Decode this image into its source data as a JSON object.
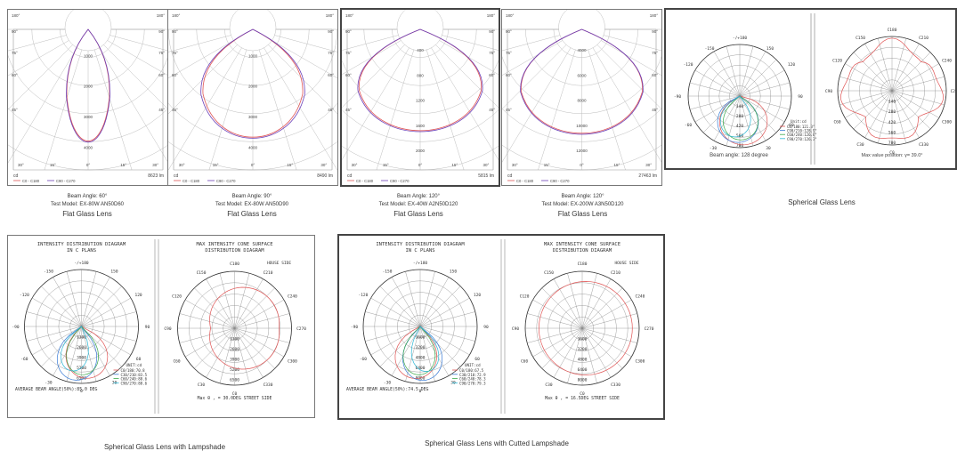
{
  "colors": {
    "red": "#e05555",
    "purple": "#6a3fb8",
    "blue": "#3a7bd5",
    "cyan": "#2bb7d6",
    "green": "#3aa84a",
    "grid": "#bdbdbd"
  },
  "flat_panels": [
    {
      "max_lm": "8623 lm",
      "rings": [
        "1000",
        "2000",
        "3000",
        "4000"
      ],
      "legend": [
        "C0 - C180",
        "C90 - C270"
      ],
      "beam": "Beam Angle: 60°",
      "model": "Test Model: EX-80W AN50D60",
      "title": "Flat Glass Lens"
    },
    {
      "max_lm": "8490 lm",
      "rings": [
        "1000",
        "2000",
        "3000",
        "4000"
      ],
      "legend": [
        "C0 - C180",
        "C90 - C270"
      ],
      "beam": "Beam Angle: 90°",
      "model": "Test Model: EX-80W AN50D90",
      "title": "Flat Glass Lens"
    },
    {
      "max_lm": "5815 lm",
      "rings": [
        "400",
        "800",
        "1200",
        "1600",
        "2000"
      ],
      "legend": [
        "C0 - C180",
        "C90 - C270"
      ],
      "beam": "Beam Angle: 120°",
      "model": "Test Model: EX-40W A2N50D120",
      "title": "Flat Glass Lens"
    },
    {
      "max_lm": "27463 lm",
      "rings": [
        "4000",
        "6000",
        "8000",
        "10000",
        "12000"
      ],
      "legend": [
        "C0 - C180",
        "C90 - C270"
      ],
      "beam": "Beam Angle: 120°",
      "model": "Test Model: EX-200W A3N50D120",
      "title": "Flat Glass Lens"
    }
  ],
  "flat_angles": {
    "top": [
      "180°",
      "180°"
    ],
    "mid1": [
      "90°",
      "90°"
    ],
    "mid2": [
      "75°",
      "75°"
    ],
    "mid3": [
      "60°",
      "60°"
    ],
    "mid4": [
      "45°",
      "45°"
    ],
    "bottom": [
      "30°",
      "15°",
      "0°",
      "15°",
      "30°"
    ],
    "cd": "cd"
  },
  "spherical_top": {
    "beam": "Beam angle: 128 degree",
    "max": "Max value position: γ= 39.0°",
    "unit": "Unit:cd",
    "legend": [
      "C0/180:121.3°",
      "C90/210:128.9°",
      "C60/240:126.6°",
      "C90/270:126.3°"
    ],
    "rings": [
      "140",
      "280",
      "420",
      "560",
      "700"
    ],
    "right_rings": [
      "140",
      "280",
      "420",
      "560",
      "700"
    ],
    "angles_left": [
      "-/+180",
      "150",
      "120",
      "90",
      "60",
      "30",
      "-30",
      "-60",
      "-90",
      "-120",
      "-150"
    ],
    "angles_right": [
      "C180",
      "C150",
      "C120",
      "C90",
      "C60",
      "C30",
      "C0",
      "C330",
      "C300",
      "C270",
      "C240",
      "C210"
    ],
    "title": "Spherical Glass Lens"
  },
  "spherical_bottom": [
    {
      "left_title": [
        "INTENSITY DISTRIBUTION DIAGRAM",
        "IN C PLANS"
      ],
      "right_title": [
        "MAX INTENSITY CONE SURFACE",
        "DISTRIBUTION DIAGRAM"
      ],
      "house": "HOUSE SIDE",
      "rings": [
        "1300",
        "2600",
        "3900",
        "5200",
        "6500"
      ],
      "unit": "UNIT:cd",
      "legend": [
        "C0/180:70.8",
        "C30/210:83.5",
        "C60/240:88.6",
        "C90/270:88.6"
      ],
      "avg": "AVERAGE BEAM ANGLE(50%):85.0 DEG",
      "max": "Max θ , = 30.0DEG STREET SIDE",
      "title": "Spherical Glass Lens with Lampshade"
    },
    {
      "left_title": [
        "INTENSITY DISTRIBUTION DIAGRAM",
        "IN C PLANS"
      ],
      "right_title": [
        "MAX INTENSITY CONE SURFACE",
        "DISTRIBUTION DIAGRAM"
      ],
      "house": "HOUSE SIDE",
      "rings": [
        "1600",
        "3200",
        "4800",
        "6400",
        "8000"
      ],
      "unit": "UNIT:cd",
      "legend": [
        "C0/180:67.5",
        "C30/210:72.9",
        "C60/240:78.3",
        "C90/270:79.3"
      ],
      "avg": "AVERAGE BEAM ANGLE(50%):74.5 DEG",
      "max": "Max θ , = 16.5DEG STREET SIDE",
      "title": "Spherical Glass Lens with Cutted Lampshade"
    }
  ],
  "bottom_angles_left": [
    "-/+180",
    "150",
    "120",
    "90",
    "60",
    "30",
    "0",
    "-30",
    "-60",
    "-90",
    "-120",
    "-150"
  ],
  "bottom_angles_right": [
    "C180",
    "C150",
    "C120",
    "C90",
    "C60",
    "C30",
    "C0",
    "C330",
    "C300",
    "C270",
    "C240",
    "C210"
  ],
  "chart_data": [
    {
      "type": "polar",
      "title": "Flat Glass Lens",
      "series": [
        {
          "name": "C0 - C180",
          "values": [
            4500
          ]
        },
        {
          "name": "C90 - C270",
          "values": [
            4600
          ]
        }
      ],
      "beam_angle_deg": 60
    },
    {
      "type": "polar",
      "title": "Flat Glass Lens",
      "series": [
        {
          "name": "C0 - C180",
          "values": [
            4200
          ]
        },
        {
          "name": "C90 - C270",
          "values": [
            4300
          ]
        }
      ],
      "beam_angle_deg": 90
    },
    {
      "type": "polar",
      "title": "Flat Glass Lens",
      "series": [
        {
          "name": "C0 - C180",
          "values": [
            2000
          ]
        },
        {
          "name": "C90 - C270",
          "values": [
            2050
          ]
        }
      ],
      "beam_angle_deg": 120
    },
    {
      "type": "polar",
      "title": "Flat Glass Lens",
      "series": [
        {
          "name": "C0 - C180",
          "values": [
            12800
          ]
        },
        {
          "name": "C90 - C270",
          "values": [
            13000
          ]
        }
      ],
      "beam_angle_deg": 120
    }
  ]
}
